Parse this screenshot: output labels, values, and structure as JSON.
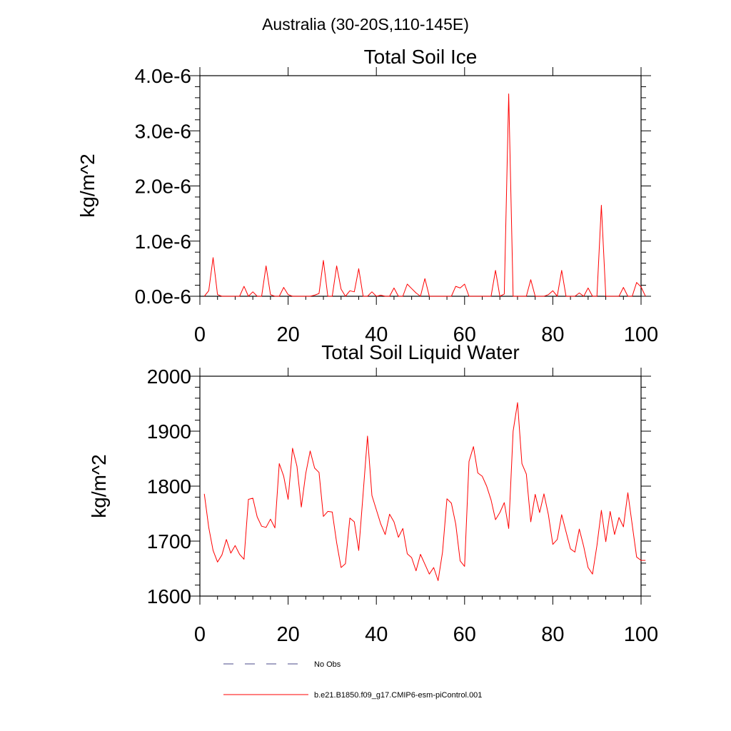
{
  "figure": {
    "title": "Australia (30-20S,110-145E)"
  },
  "legend": {
    "placement": "bottom",
    "entries": [
      {
        "label": "No Obs",
        "color": "#4a4a8a",
        "style": "dashed"
      },
      {
        "label": "b.e21.B1850.f09_g17.CMIP6-esm-piControl.001",
        "color": "#ff0000",
        "style": "solid"
      }
    ]
  },
  "chart_data": [
    {
      "type": "line",
      "title": "Total Soil Ice",
      "xlabel": "",
      "ylabel": "kg/m^2",
      "xlim": [
        0,
        100
      ],
      "ylim": [
        0,
        4e-06
      ],
      "x_ticks": [
        0,
        20,
        40,
        60,
        80,
        100
      ],
      "x_tick_labels": [
        "0",
        "20",
        "40",
        "60",
        "80",
        "100"
      ],
      "y_ticks": [
        0,
        1e-06,
        2e-06,
        3e-06,
        4e-06
      ],
      "y_tick_labels": [
        "0.0e-6",
        "1.0e-6",
        "2.0e-6",
        "3.0e-6",
        "4.0e-6"
      ],
      "grid": false,
      "series": [
        {
          "name": "b.e21.B1850.f09_g17.CMIP6-esm-piControl.001",
          "color": "#ff0000",
          "x": [
            1,
            2,
            3,
            4,
            5,
            6,
            7,
            8,
            9,
            10,
            11,
            12,
            13,
            14,
            15,
            16,
            17,
            18,
            19,
            20,
            21,
            22,
            23,
            24,
            25,
            26,
            27,
            28,
            29,
            30,
            31,
            32,
            33,
            34,
            35,
            36,
            37,
            38,
            39,
            40,
            41,
            42,
            43,
            44,
            45,
            46,
            47,
            48,
            49,
            50,
            51,
            52,
            53,
            54,
            55,
            56,
            57,
            58,
            59,
            60,
            61,
            62,
            63,
            64,
            65,
            66,
            67,
            68,
            69,
            70,
            71,
            72,
            73,
            74,
            75,
            76,
            77,
            78,
            79,
            80,
            81,
            82,
            83,
            84,
            85,
            86,
            87,
            88,
            89,
            90,
            91,
            92,
            93,
            94,
            95,
            96,
            97,
            98,
            99,
            100,
            101
          ],
          "values": [
            0,
            1e-07,
            7e-07,
            3e-08,
            0,
            0,
            0,
            0,
            0,
            1.8e-07,
            0,
            8e-08,
            0,
            0,
            5.5e-07,
            3e-08,
            0,
            0,
            1.6e-07,
            3e-08,
            0,
            0,
            0,
            0,
            0,
            2e-08,
            5e-08,
            6.5e-07,
            0,
            0,
            5.5e-07,
            1.3e-07,
            0,
            1e-07,
            8e-08,
            5e-07,
            0,
            0,
            8e-08,
            0,
            2e-08,
            0,
            0,
            1.5e-07,
            0,
            0,
            2.2e-07,
            1.4e-07,
            6e-08,
            0,
            3.2e-07,
            0,
            0,
            0,
            0,
            0,
            0,
            1.8e-07,
            1.5e-07,
            2.2e-07,
            0,
            0,
            0,
            0,
            0,
            0,
            4.7e-07,
            0,
            4e-08,
            3.67e-06,
            0,
            0,
            0,
            0,
            3e-07,
            0,
            0,
            0,
            3e-08,
            1e-07,
            0,
            4.7e-07,
            0,
            0,
            0,
            6e-08,
            0,
            1.5e-07,
            0,
            0,
            1.65e-06,
            0,
            0,
            0,
            0,
            1.6e-07,
            0,
            0,
            2.5e-07,
            1.7e-07,
            0
          ]
        }
      ]
    },
    {
      "type": "line",
      "title": "Total Soil Liquid Water",
      "xlabel": "",
      "ylabel": "kg/m^2",
      "xlim": [
        0,
        100
      ],
      "ylim": [
        1600,
        2000
      ],
      "x_ticks": [
        0,
        20,
        40,
        60,
        80,
        100
      ],
      "x_tick_labels": [
        "0",
        "20",
        "40",
        "60",
        "80",
        "100"
      ],
      "y_ticks": [
        1600,
        1700,
        1800,
        1900,
        2000
      ],
      "y_tick_labels": [
        "1600",
        "1700",
        "1800",
        "1900",
        "2000"
      ],
      "grid": false,
      "series": [
        {
          "name": "b.e21.B1850.f09_g17.CMIP6-esm-piControl.001",
          "color": "#ff0000",
          "x": [
            1,
            2,
            3,
            4,
            5,
            6,
            7,
            8,
            9,
            10,
            11,
            12,
            13,
            14,
            15,
            16,
            17,
            18,
            19,
            20,
            21,
            22,
            23,
            24,
            25,
            26,
            27,
            28,
            29,
            30,
            31,
            32,
            33,
            34,
            35,
            36,
            37,
            38,
            39,
            40,
            41,
            42,
            43,
            44,
            45,
            46,
            47,
            48,
            49,
            50,
            51,
            52,
            53,
            54,
            55,
            56,
            57,
            58,
            59,
            60,
            61,
            62,
            63,
            64,
            65,
            66,
            67,
            68,
            69,
            70,
            71,
            72,
            73,
            74,
            75,
            76,
            77,
            78,
            79,
            80,
            81,
            82,
            83,
            84,
            85,
            86,
            87,
            88,
            89,
            90,
            91,
            92,
            93,
            94,
            95,
            96,
            97,
            98,
            99,
            100,
            101
          ],
          "values": [
            1786,
            1725,
            1683,
            1662,
            1675,
            1703,
            1678,
            1692,
            1676,
            1667,
            1776,
            1778,
            1744,
            1727,
            1725,
            1740,
            1724,
            1841,
            1818,
            1776,
            1869,
            1836,
            1762,
            1823,
            1864,
            1833,
            1825,
            1745,
            1754,
            1753,
            1697,
            1652,
            1659,
            1742,
            1735,
            1683,
            1787,
            1891,
            1783,
            1757,
            1731,
            1712,
            1749,
            1735,
            1707,
            1723,
            1677,
            1670,
            1646,
            1676,
            1658,
            1640,
            1652,
            1628,
            1680,
            1777,
            1769,
            1731,
            1664,
            1654,
            1845,
            1872,
            1824,
            1818,
            1800,
            1775,
            1739,
            1752,
            1770,
            1723,
            1900,
            1952,
            1841,
            1822,
            1735,
            1785,
            1752,
            1786,
            1748,
            1694,
            1703,
            1748,
            1717,
            1686,
            1680,
            1722,
            1690,
            1652,
            1640,
            1692,
            1756,
            1699,
            1754,
            1712,
            1743,
            1726,
            1788,
            1730,
            1671,
            1665,
            1665
          ]
        }
      ]
    }
  ]
}
